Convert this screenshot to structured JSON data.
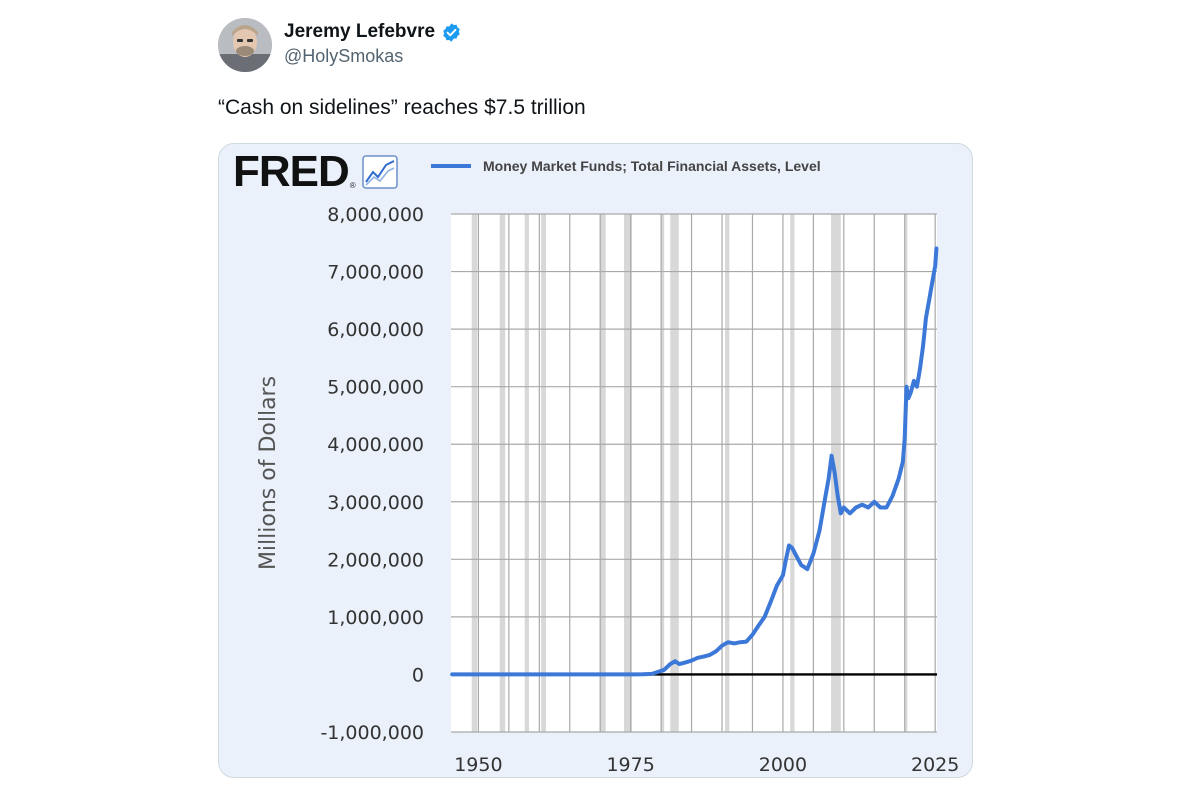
{
  "author": {
    "name": "Jeremy Lefebvre",
    "handle": "@HolySmokas",
    "verified": true
  },
  "tweet": {
    "text": "“Cash on sidelines” reaches $7.5 trillion"
  },
  "fred": {
    "logo_text": "FRED",
    "registered_mark": "®",
    "icon": "line-chart-icon"
  },
  "colors": {
    "series": "#3c78d8",
    "plot_bg": "#ffffff",
    "panel_bg": "#eaf1fa",
    "recession": "#d8d8d8",
    "verified": "#1d9bf0"
  },
  "chart_data": {
    "type": "line",
    "ylabel": "Millions of Dollars",
    "xlabel": "",
    "title": "",
    "legend_placement": "top",
    "grid": true,
    "xlim": [
      1945.5,
      2025.3
    ],
    "ylim": [
      -1000000,
      8000000
    ],
    "yticks": [
      8000000,
      7000000,
      6000000,
      5000000,
      4000000,
      3000000,
      2000000,
      1000000,
      0,
      -1000000
    ],
    "ytick_labels": [
      "8,000,000",
      "7,000,000",
      "6,000,000",
      "5,000,000",
      "4,000,000",
      "3,000,000",
      "2,000,000",
      "1,000,000",
      "0",
      "-1,000,000"
    ],
    "xticks": [
      1950,
      1975,
      2000,
      2025
    ],
    "xtick_labels": [
      "1950",
      "1975",
      "2000",
      "2025"
    ],
    "recessions": [
      [
        1948.9,
        1949.8
      ],
      [
        1953.5,
        1954.4
      ],
      [
        1957.6,
        1958.3
      ],
      [
        1960.3,
        1961.1
      ],
      [
        1969.9,
        1970.9
      ],
      [
        1973.9,
        1975.2
      ],
      [
        1980.0,
        1980.5
      ],
      [
        1981.5,
        1982.9
      ],
      [
        1990.5,
        1991.2
      ],
      [
        2001.2,
        2001.9
      ],
      [
        2007.9,
        2009.5
      ],
      [
        2020.1,
        2020.4
      ]
    ],
    "series": [
      {
        "name": "Money Market Funds; Total Financial Assets, Level",
        "x": [
          1945.7,
          1946.3,
          1952.0,
          1960,
          1970,
          1975,
          1977,
          1978.5,
          1979.5,
          1980.5,
          1981.5,
          1982.3,
          1983,
          1984,
          1985,
          1986,
          1987,
          1988,
          1989,
          1990,
          1991,
          1992,
          1993,
          1994,
          1995,
          1996,
          1997,
          1998,
          1999,
          2000,
          2000.5,
          2001,
          2001.5,
          2002,
          2003,
          2004,
          2005,
          2006,
          2007,
          2007.5,
          2008,
          2008.5,
          2009,
          2009.5,
          2010,
          2011,
          2012,
          2013,
          2014,
          2015,
          2016,
          2017,
          2018,
          2019,
          2019.7,
          2020.0,
          2020.3,
          2020.6,
          2021,
          2021.5,
          2022,
          2022.5,
          2023,
          2023.5,
          2024,
          2024.5,
          2025.0,
          2025.2
        ],
        "values": [
          0,
          0,
          0,
          0,
          0,
          0,
          3000,
          10000,
          45000,
          80000,
          180000,
          230000,
          180000,
          210000,
          240000,
          290000,
          310000,
          340000,
          400000,
          500000,
          560000,
          540000,
          560000,
          570000,
          690000,
          850000,
          1000000,
          1260000,
          1540000,
          1720000,
          2000000,
          2240000,
          2200000,
          2100000,
          1900000,
          1830000,
          2100000,
          2500000,
          3100000,
          3400000,
          3800000,
          3500000,
          3100000,
          2800000,
          2900000,
          2800000,
          2900000,
          2950000,
          2900000,
          3000000,
          2900000,
          2900000,
          3100000,
          3400000,
          3700000,
          4100000,
          5000000,
          4800000,
          4900000,
          5100000,
          5000000,
          5300000,
          5700000,
          6200000,
          6500000,
          6800000,
          7100000,
          7400000
        ]
      }
    ]
  }
}
